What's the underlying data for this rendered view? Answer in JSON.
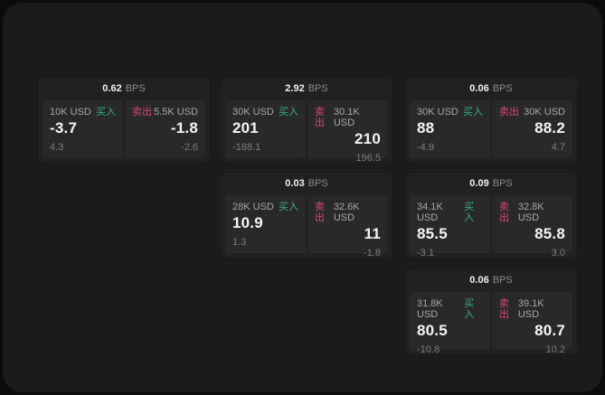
{
  "labels": {
    "buy": "买入",
    "sell": "卖出",
    "bps_unit": "BPS"
  },
  "colors": {
    "page_bg": "#0b0b0b",
    "window_bg": "#1b1b1b",
    "card_bg": "#212121",
    "panel_bg": "#292929",
    "buy_green": "#3cb17e",
    "sell_red": "#d9486e"
  },
  "cards": [
    {
      "bps": "0.62",
      "grid": {
        "row": 0,
        "col": 0
      },
      "buy": {
        "amount": "10K USD",
        "price": "-3.7",
        "sub": "4.3"
      },
      "sell": {
        "amount": "5.5K USD",
        "price": "-1.8",
        "sub": "-2.6"
      }
    },
    {
      "bps": "2.92",
      "grid": {
        "row": 0,
        "col": 1
      },
      "buy": {
        "amount": "30K USD",
        "price": "201",
        "sub": "-188.1"
      },
      "sell": {
        "amount": "30.1K USD",
        "price": "210",
        "sub": "196.5"
      }
    },
    {
      "bps": "0.06",
      "grid": {
        "row": 0,
        "col": 2
      },
      "buy": {
        "amount": "30K USD",
        "price": "88",
        "sub": "-4.9"
      },
      "sell": {
        "amount": "30K USD",
        "price": "88.2",
        "sub": "4.7"
      }
    },
    {
      "bps": "0.03",
      "grid": {
        "row": 1,
        "col": 1
      },
      "buy": {
        "amount": "28K USD",
        "price": "10.9",
        "sub": "1.3"
      },
      "sell": {
        "amount": "32.6K USD",
        "price": "11",
        "sub": "-1.8"
      }
    },
    {
      "bps": "0.09",
      "grid": {
        "row": 1,
        "col": 2
      },
      "buy": {
        "amount": "34.1K USD",
        "price": "85.5",
        "sub": "-3.1"
      },
      "sell": {
        "amount": "32.8K USD",
        "price": "85.8",
        "sub": "3.0"
      }
    },
    {
      "bps": "0.06",
      "grid": {
        "row": 2,
        "col": 2
      },
      "buy": {
        "amount": "31.8K USD",
        "price": "80.5",
        "sub": "-10.8"
      },
      "sell": {
        "amount": "39.1K USD",
        "price": "80.7",
        "sub": "10.2"
      }
    }
  ]
}
